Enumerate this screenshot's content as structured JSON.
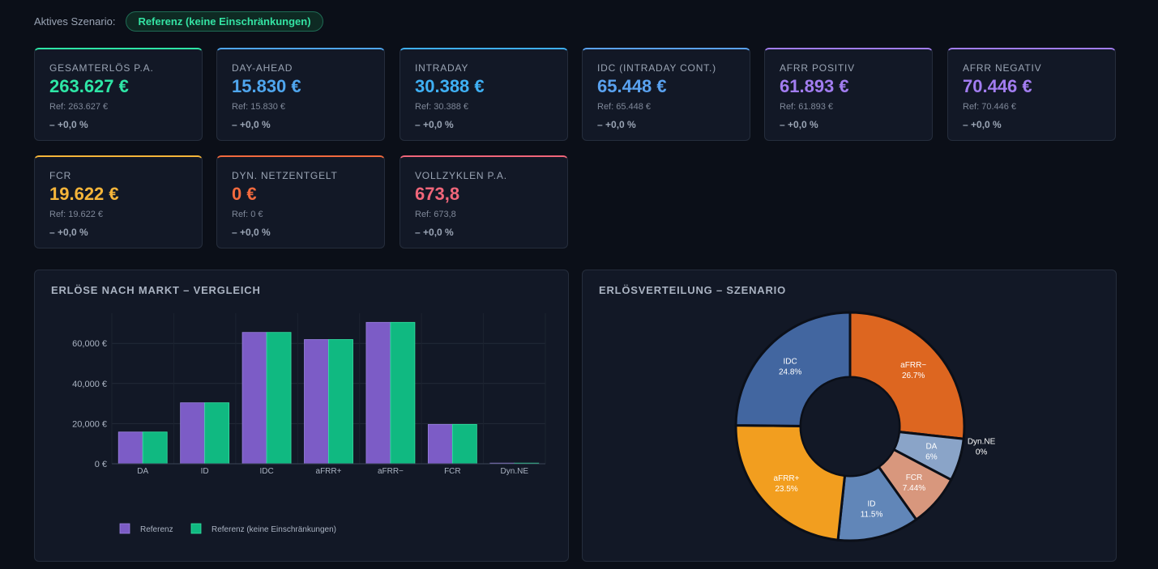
{
  "scenario": {
    "label": "Aktives Szenario:",
    "active": "Referenz (keine Einschränkungen)"
  },
  "kpis": [
    {
      "title": "Gesamterlös p.a.",
      "value": "263.627 €",
      "ref": "Ref: 263.627 €",
      "delta": "– +0,0 %",
      "color": "#2ee6a6"
    },
    {
      "title": "Day-Ahead",
      "value": "15.830 €",
      "ref": "Ref: 15.830 €",
      "delta": "– +0,0 %",
      "color": "#4fa6ee"
    },
    {
      "title": "Intraday",
      "value": "30.388 €",
      "ref": "Ref: 30.388 €",
      "delta": "– +0,0 %",
      "color": "#3fb0f4"
    },
    {
      "title": "IDC (Intraday Cont.)",
      "value": "65.448 €",
      "ref": "Ref: 65.448 €",
      "delta": "– +0,0 %",
      "color": "#5aa2f0"
    },
    {
      "title": "aFRR Positiv",
      "value": "61.893 €",
      "ref": "Ref: 61.893 €",
      "delta": "– +0,0 %",
      "color": "#a27df0"
    },
    {
      "title": "aFRR Negativ",
      "value": "70.446 €",
      "ref": "Ref: 70.446 €",
      "delta": "– +0,0 %",
      "color": "#a27df0"
    },
    {
      "title": "FCR",
      "value": "19.622 €",
      "ref": "Ref: 19.622 €",
      "delta": "– +0,0 %",
      "color": "#f5b53a"
    },
    {
      "title": "Dyn. Netzentgelt",
      "value": "0 €",
      "ref": "Ref: 0 €",
      "delta": "– +0,0 %",
      "color": "#f26a3e"
    },
    {
      "title": "Vollzyklen p.a.",
      "value": "673,8",
      "ref": "Ref: 673,8",
      "delta": "– +0,0 %",
      "color": "#f0667a"
    }
  ],
  "bar_panel": {
    "title": "Erlöse nach Markt – Vergleich"
  },
  "pie_panel": {
    "title": "Erlösverteilung – Szenario"
  },
  "chart_data": [
    {
      "type": "bar",
      "categories": [
        "DA",
        "ID",
        "IDC",
        "aFRR+",
        "aFRR−",
        "FCR",
        "Dyn.NE"
      ],
      "series": [
        {
          "name": "Referenz",
          "values": [
            15830,
            30388,
            65448,
            61893,
            70446,
            19622,
            0
          ],
          "color": "#7c5cc6"
        },
        {
          "name": "Referenz (keine Einschränkungen)",
          "values": [
            15830,
            30388,
            65448,
            61893,
            70446,
            19622,
            0
          ],
          "color": "#10b981"
        }
      ],
      "ylim": [
        0,
        75000
      ],
      "yticks": [
        0,
        20000,
        40000,
        60000
      ],
      "ytick_labels": [
        "0 €",
        "20,000 €",
        "40,000 €",
        "60,000 €"
      ],
      "grid": true,
      "legend": "bottom"
    },
    {
      "type": "pie",
      "donut": true,
      "slices": [
        {
          "label": "aFRR−",
          "pct_label": "26.7%",
          "value": 70446,
          "color": "#dd6620"
        },
        {
          "label": "Dyn.NE",
          "pct_label": "0%",
          "value": 0,
          "color": "#4a6fa5"
        },
        {
          "label": "DA",
          "pct_label": "6%",
          "value": 15830,
          "color": "#8aa4c8"
        },
        {
          "label": "FCR",
          "pct_label": "7.44%",
          "value": 19622,
          "color": "#d8977d"
        },
        {
          "label": "ID",
          "pct_label": "11.5%",
          "value": 30388,
          "color": "#6186b8"
        },
        {
          "label": "aFRR+",
          "pct_label": "23.5%",
          "value": 61893,
          "color": "#f29e1f"
        },
        {
          "label": "IDC",
          "pct_label": "24.8%",
          "value": 65448,
          "color": "#4266a0"
        }
      ]
    }
  ]
}
